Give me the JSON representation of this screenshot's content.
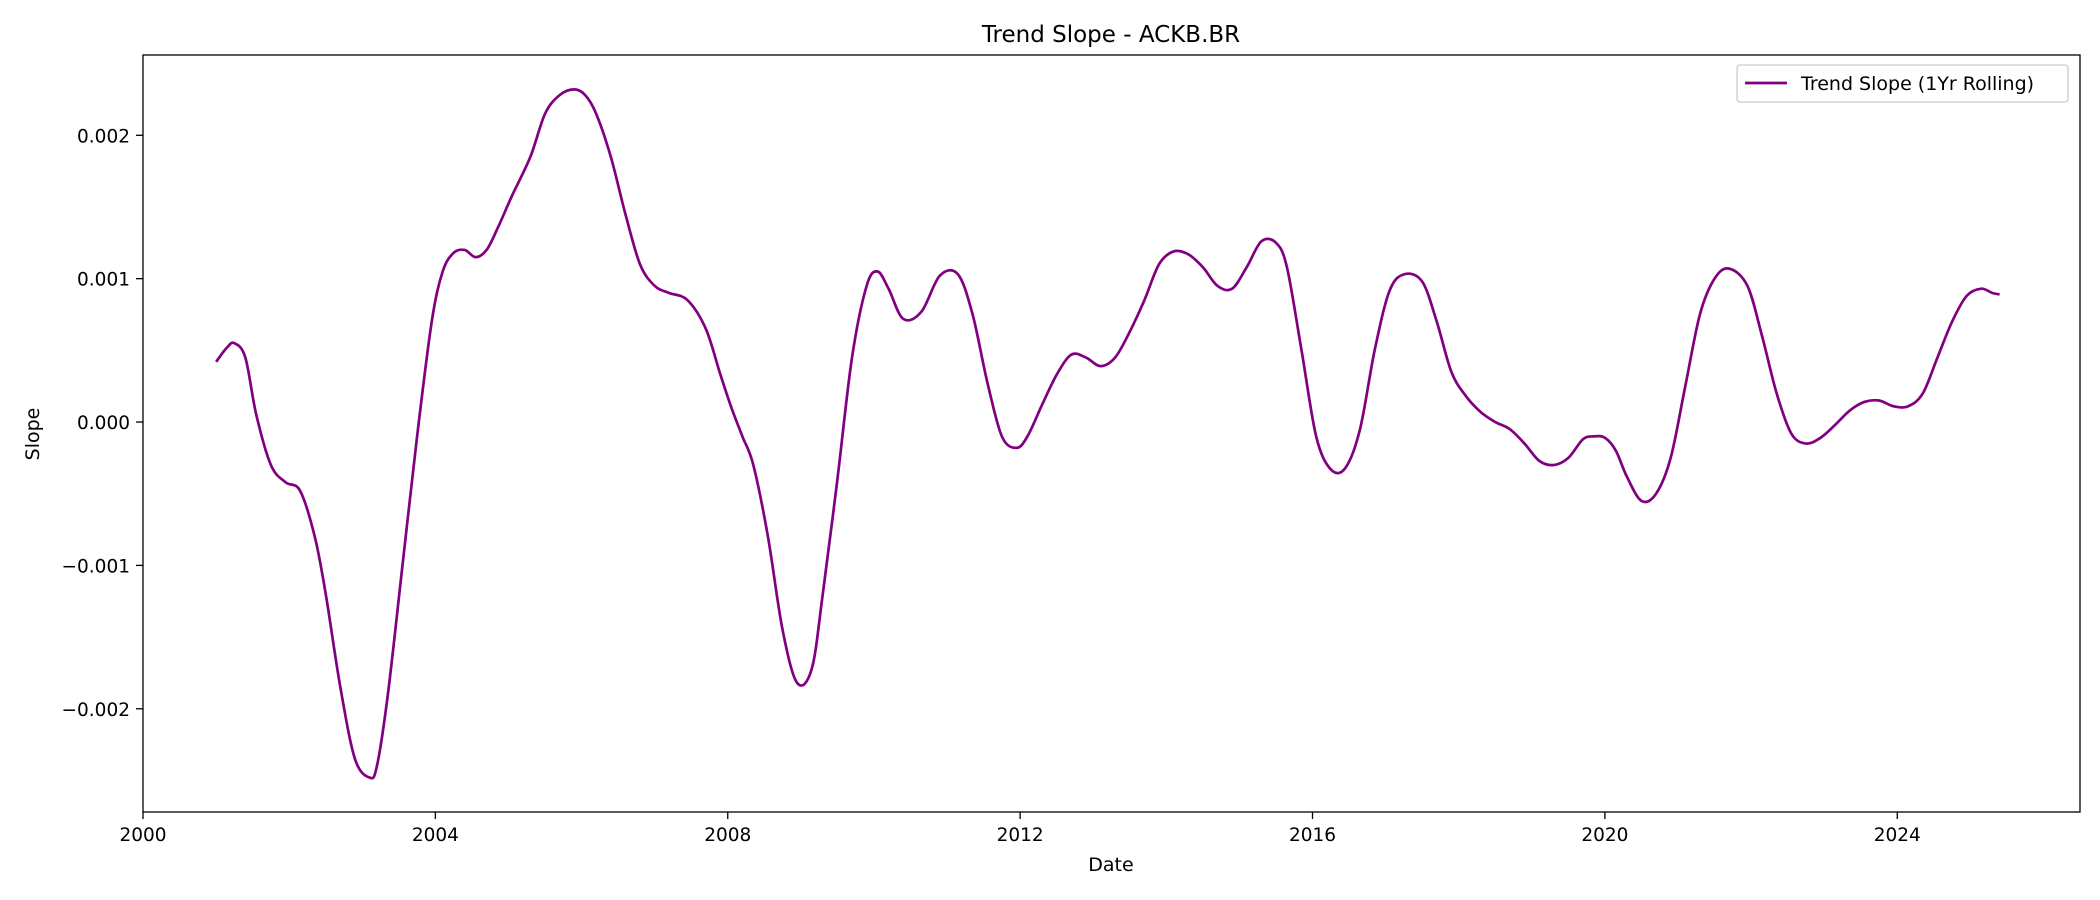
{
  "chart_data": {
    "type": "line",
    "title": "Trend Slope - ACKB.BR",
    "xlabel": "Date",
    "ylabel": "Slope",
    "xlim": [
      2000,
      2026.5
    ],
    "ylim": [
      -0.00272,
      0.00256
    ],
    "x_ticks": [
      2000,
      2004,
      2008,
      2012,
      2016,
      2020,
      2024
    ],
    "x_tick_labels": [
      "2000",
      "2004",
      "2008",
      "2012",
      "2016",
      "2020",
      "2024"
    ],
    "y_ticks": [
      0.002,
      0.001,
      0.0,
      -0.001,
      -0.002
    ],
    "y_tick_labels": [
      "0.002",
      "0.001",
      "0.000",
      "−0.001",
      "−0.002"
    ],
    "grid": false,
    "legend_position": "top-right",
    "color": "#800080",
    "series": [
      {
        "name": "Trend Slope (1Yr Rolling)",
        "x": [
          2001.0,
          2001.15,
          2001.25,
          2001.4,
          2001.55,
          2001.75,
          2001.95,
          2002.15,
          2002.35,
          2002.5,
          2002.7,
          2002.9,
          2003.1,
          2003.2,
          2003.35,
          2003.55,
          2003.75,
          2003.95,
          2004.1,
          2004.25,
          2004.4,
          2004.55,
          2004.7,
          2004.85,
          2005.05,
          2005.3,
          2005.5,
          2005.7,
          2005.9,
          2006.05,
          2006.2,
          2006.4,
          2006.6,
          2006.8,
          2007.0,
          2007.2,
          2007.45,
          2007.7,
          2007.9,
          2008.05,
          2008.2,
          2008.35,
          2008.55,
          2008.75,
          2008.95,
          2009.15,
          2009.3,
          2009.5,
          2009.7,
          2009.9,
          2010.05,
          2010.2,
          2010.4,
          2010.65,
          2010.9,
          2011.15,
          2011.35,
          2011.55,
          2011.75,
          2011.95,
          2012.1,
          2012.3,
          2012.5,
          2012.7,
          2012.9,
          2013.1,
          2013.3,
          2013.5,
          2013.7,
          2013.9,
          2014.1,
          2014.3,
          2014.5,
          2014.7,
          2014.9,
          2015.1,
          2015.3,
          2015.5,
          2015.65,
          2015.85,
          2016.05,
          2016.25,
          2016.45,
          2016.65,
          2016.85,
          2017.05,
          2017.25,
          2017.5,
          2017.7,
          2017.9,
          2018.1,
          2018.3,
          2018.5,
          2018.7,
          2018.9,
          2019.1,
          2019.3,
          2019.5,
          2019.7,
          2019.85,
          2020.0,
          2020.15,
          2020.3,
          2020.5,
          2020.7,
          2020.9,
          2021.1,
          2021.3,
          2021.5,
          2021.7,
          2021.95,
          2022.15,
          2022.35,
          2022.55,
          2022.75,
          2022.95,
          2023.15,
          2023.35,
          2023.55,
          2023.75,
          2023.95,
          2024.15,
          2024.35,
          2024.55,
          2024.75,
          2024.95,
          2025.15,
          2025.3,
          2025.4
        ],
        "values": [
          0.00042,
          0.00052,
          0.00055,
          0.00045,
          5e-05,
          -0.0003,
          -0.00042,
          -0.00048,
          -0.0008,
          -0.0012,
          -0.00185,
          -0.00235,
          -0.00248,
          -0.0024,
          -0.0019,
          -0.001,
          -0.0001,
          0.0007,
          0.00105,
          0.00118,
          0.0012,
          0.00115,
          0.0012,
          0.00135,
          0.00158,
          0.00185,
          0.00215,
          0.00228,
          0.00232,
          0.00228,
          0.00215,
          0.00185,
          0.00145,
          0.0011,
          0.00095,
          0.0009,
          0.00085,
          0.00065,
          0.00033,
          0.0001,
          -0.0001,
          -0.0003,
          -0.0008,
          -0.00145,
          -0.00182,
          -0.00172,
          -0.0012,
          -0.0004,
          0.00045,
          0.00095,
          0.00105,
          0.00093,
          0.00072,
          0.00077,
          0.00102,
          0.00103,
          0.00075,
          0.00028,
          -0.0001,
          -0.00018,
          -0.0001,
          0.00012,
          0.00033,
          0.00047,
          0.00045,
          0.00039,
          0.00045,
          0.00063,
          0.00085,
          0.0011,
          0.00119,
          0.00117,
          0.00108,
          0.00095,
          0.00093,
          0.00108,
          0.00126,
          0.00125,
          0.00108,
          0.0005,
          -0.0001,
          -0.00033,
          -0.00032,
          -5e-05,
          0.0005,
          0.00091,
          0.00103,
          0.00098,
          0.0007,
          0.00035,
          0.00018,
          7e-05,
          0.0,
          -5e-05,
          -0.00015,
          -0.00027,
          -0.0003,
          -0.00025,
          -0.00012,
          -0.0001,
          -0.00011,
          -0.0002,
          -0.00038,
          -0.00055,
          -0.0005,
          -0.00025,
          0.00025,
          0.00075,
          0.001,
          0.00107,
          0.00095,
          0.0006,
          0.0002,
          -8e-05,
          -0.00015,
          -0.00011,
          -2e-05,
          8e-05,
          0.00014,
          0.00015,
          0.00011,
          0.00011,
          0.0002,
          0.00045,
          0.0007,
          0.00088,
          0.00093,
          0.0009,
          0.00089
        ]
      }
    ]
  }
}
